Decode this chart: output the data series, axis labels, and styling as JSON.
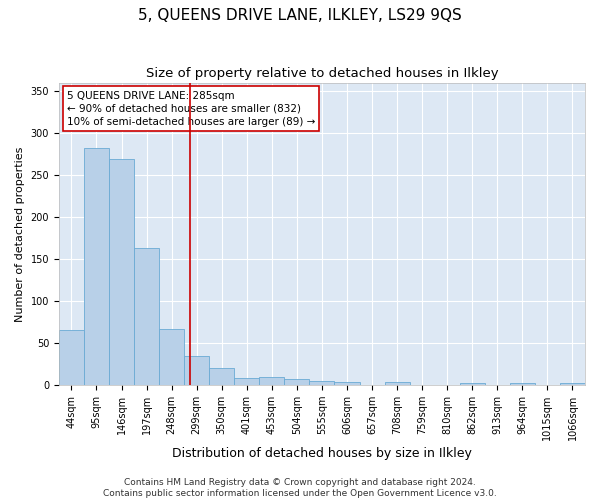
{
  "title": "5, QUEENS DRIVE LANE, ILKLEY, LS29 9QS",
  "subtitle": "Size of property relative to detached houses in Ilkley",
  "xlabel": "Distribution of detached houses by size in Ilkley",
  "ylabel": "Number of detached properties",
  "categories": [
    "44sqm",
    "95sqm",
    "146sqm",
    "197sqm",
    "248sqm",
    "299sqm",
    "350sqm",
    "401sqm",
    "453sqm",
    "504sqm",
    "555sqm",
    "606sqm",
    "657sqm",
    "708sqm",
    "759sqm",
    "810sqm",
    "862sqm",
    "913sqm",
    "964sqm",
    "1015sqm",
    "1066sqm"
  ],
  "values": [
    65,
    282,
    270,
    163,
    67,
    35,
    20,
    8,
    9,
    7,
    5,
    4,
    0,
    3,
    0,
    0,
    2,
    0,
    2,
    0,
    2
  ],
  "bar_color": "#b8d0e8",
  "bar_edge_color": "#6aaad4",
  "fig_background_color": "#ffffff",
  "plot_background_color": "#dde8f4",
  "grid_color": "#ffffff",
  "annotation_box_facecolor": "#ffffff",
  "annotation_box_edgecolor": "#cc0000",
  "annotation_text_line1": "5 QUEENS DRIVE LANE: 285sqm",
  "annotation_text_line2": "← 90% of detached houses are smaller (832)",
  "annotation_text_line3": "10% of semi-detached houses are larger (89) →",
  "vline_color": "#cc0000",
  "vline_x": 4.72,
  "ylim": [
    0,
    360
  ],
  "yticks": [
    0,
    50,
    100,
    150,
    200,
    250,
    300,
    350
  ],
  "footer_line1": "Contains HM Land Registry data © Crown copyright and database right 2024.",
  "footer_line2": "Contains public sector information licensed under the Open Government Licence v3.0.",
  "title_fontsize": 11,
  "subtitle_fontsize": 9.5,
  "xlabel_fontsize": 9,
  "ylabel_fontsize": 8,
  "tick_fontsize": 7,
  "annotation_fontsize": 7.5,
  "footer_fontsize": 6.5
}
